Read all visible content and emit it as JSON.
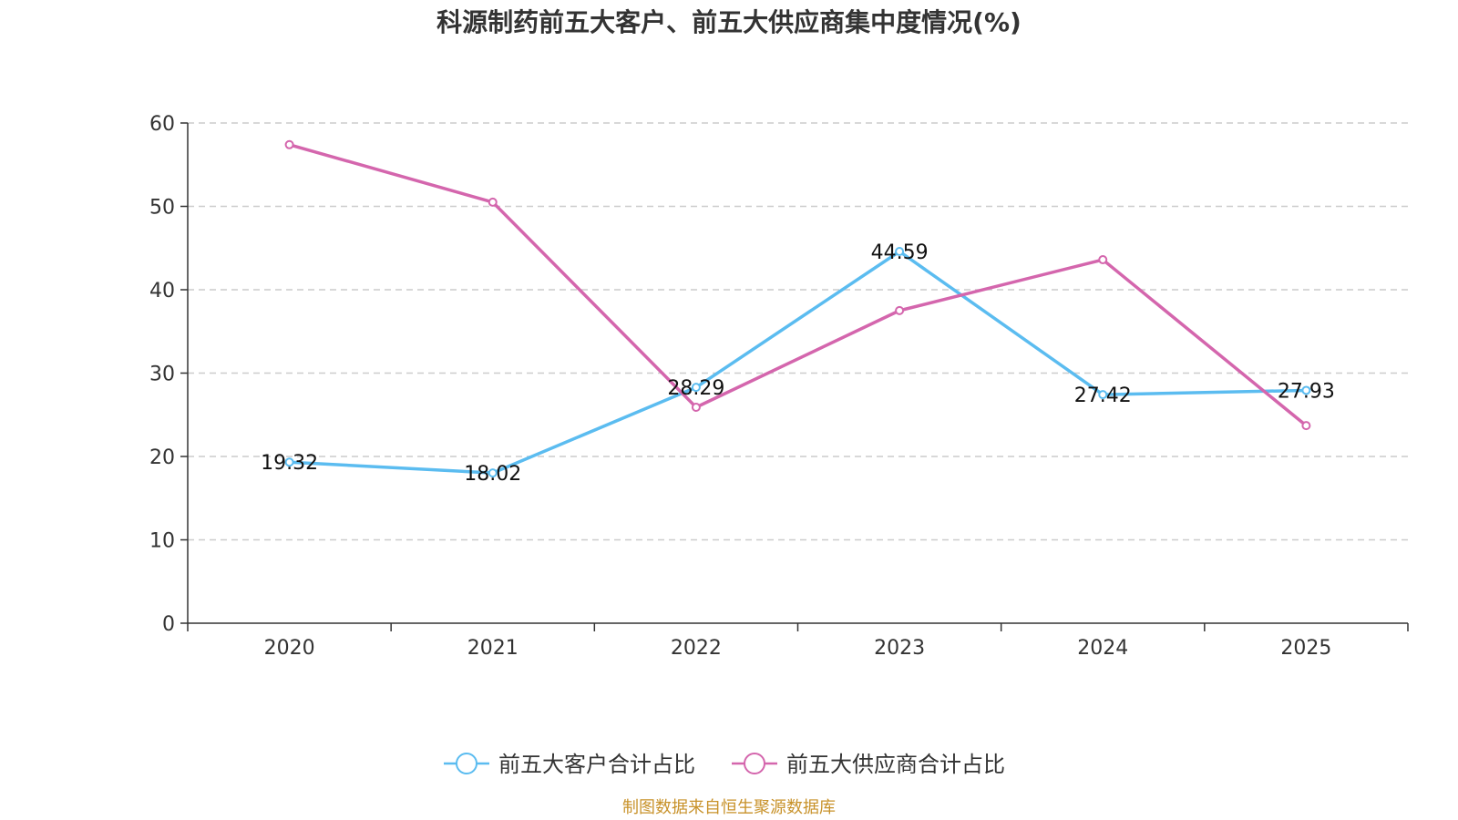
{
  "chart_data": {
    "type": "line",
    "title": "科源制药前五大客户、前五大供应商集中度情况(%)",
    "categories": [
      "2020",
      "2021",
      "2022",
      "2023",
      "2024",
      "2025"
    ],
    "ylim": [
      0,
      60
    ],
    "yticks": [
      0,
      10,
      20,
      30,
      40,
      50,
      60
    ],
    "ytick_labels": [
      "0",
      "10",
      "20",
      "30",
      "40",
      "50",
      "60"
    ],
    "grid": true,
    "legend_position": "bottom",
    "series": [
      {
        "name": "前五大客户合计占比",
        "color": "#5bbcf0",
        "values": [
          19.32,
          18.02,
          28.29,
          44.59,
          27.42,
          27.93
        ],
        "labels": [
          "19.32",
          "18.02",
          "28.29",
          "44.59",
          "27.42",
          "27.93"
        ],
        "show_labels": true
      },
      {
        "name": "前五大供应商合计占比",
        "color": "#d466ad",
        "values": [
          57.4,
          50.5,
          25.9,
          37.5,
          43.6,
          23.7
        ],
        "show_labels": false
      }
    ]
  },
  "source_note": "制图数据来自恒生聚源数据库"
}
